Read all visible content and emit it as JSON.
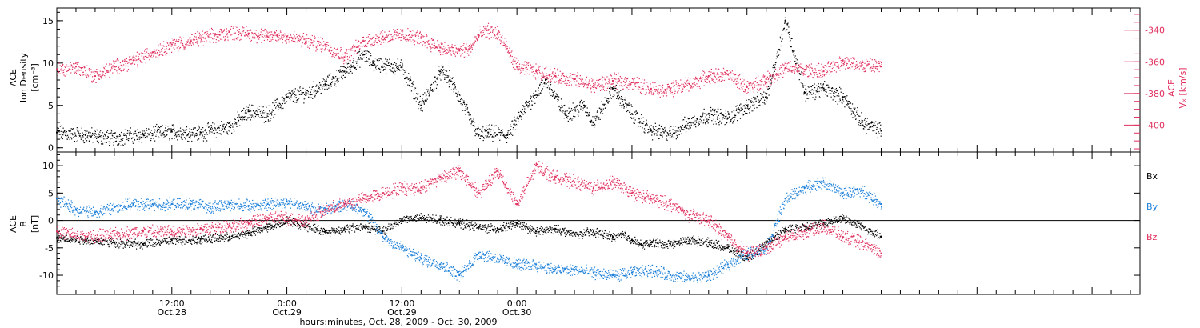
{
  "chart_data": [
    {
      "type": "scatter",
      "panel": "top",
      "ylabel_lines": [
        "ACE",
        "Ion Density",
        "[cm⁻³]"
      ],
      "y2label_lines": [
        "ACE",
        "Vₓ [km/s]"
      ],
      "yticks": [
        "0",
        "5",
        "10",
        "15"
      ],
      "y2ticks": [
        "-340",
        "-360",
        "-380",
        "-400"
      ],
      "ylim": [
        -0.5,
        16.5
      ],
      "y2lim": [
        -417,
        -326
      ],
      "x_hours_range": [
        0,
        88
      ],
      "series": [
        {
          "axis": "left",
          "color": "#000000",
          "x": [
            0,
            3,
            6,
            9,
            12,
            15,
            18,
            20,
            22,
            24,
            26,
            28,
            30,
            32,
            33,
            36,
            38,
            40,
            41,
            44,
            45,
            47,
            49,
            51,
            53,
            55,
            56,
            58,
            60,
            62,
            64,
            66,
            68,
            70,
            72,
            74,
            76,
            78,
            80,
            82,
            84,
            86
          ],
          "y": [
            1.8,
            1.5,
            1.2,
            1.6,
            1.9,
            1.8,
            2.5,
            4.3,
            4.0,
            6.0,
            6.5,
            7.5,
            9.0,
            11.0,
            10.0,
            9.5,
            5.0,
            9.0,
            8.0,
            1.5,
            1.8,
            1.5,
            5.0,
            8.0,
            4.0,
            5.0,
            3.0,
            7.0,
            4.0,
            2.0,
            1.7,
            3.0,
            4.0,
            3.5,
            5.0,
            6.0,
            15.0,
            6.5,
            7.0,
            6.0,
            3.0,
            2.0
          ]
        },
        {
          "axis": "right",
          "color": "#e0305f",
          "x": [
            0,
            2,
            4,
            6,
            8,
            10,
            12,
            14,
            15,
            17,
            18,
            20,
            22,
            23,
            24,
            26,
            28,
            30,
            32,
            34,
            36,
            38,
            40,
            41,
            42,
            43,
            44,
            45,
            46,
            48,
            50,
            52,
            54,
            56,
            58,
            60,
            62,
            64,
            66,
            68,
            70,
            72,
            74,
            76,
            78,
            80,
            82,
            84,
            86
          ],
          "y": [
            -365,
            -363,
            -369,
            -363,
            -359,
            -354,
            -349,
            -347,
            -345,
            -343,
            -341,
            -342,
            -344,
            -343,
            -344,
            -347,
            -349,
            -357,
            -347,
            -344,
            -343,
            -345,
            -351,
            -353,
            -353,
            -352,
            -343,
            -340,
            -342,
            -363,
            -366,
            -369,
            -371,
            -375,
            -372,
            -373,
            -377,
            -377,
            -374,
            -369,
            -368,
            -376,
            -371,
            -364,
            -365,
            -366,
            -359,
            -362,
            -363
          ]
        }
      ]
    },
    {
      "type": "scatter",
      "panel": "bottom",
      "ylabel_lines": [
        "ACE",
        "B",
        "[nT]"
      ],
      "yticks": [
        "10",
        "5",
        "0",
        "-5",
        "-10"
      ],
      "ylim": [
        -13.5,
        12.5
      ],
      "x_hours_range": [
        0,
        88
      ],
      "xlabel": "hours:minutes, Oct. 28, 2009 - Oct. 30, 2009",
      "xticks": [
        {
          "time": "12:00",
          "date": "Oct.28",
          "hour": 12
        },
        {
          "time": "0:00",
          "date": "Oct.29",
          "hour": 24
        },
        {
          "time": "12:00",
          "date": "Oct.29",
          "hour": 36
        },
        {
          "time": "0:00",
          "date": "Oct.30",
          "hour": 48
        }
      ],
      "legend": [
        "Bx",
        "By",
        "Bz"
      ],
      "series": [
        {
          "name": "Bx",
          "color": "#000000",
          "x": [
            0,
            3,
            6,
            9,
            12,
            15,
            18,
            20,
            22,
            24,
            26,
            28,
            30,
            32,
            34,
            36,
            38,
            40,
            42,
            44,
            46,
            48,
            50,
            52,
            54,
            56,
            58,
            59,
            60,
            61,
            62,
            64,
            66,
            68,
            70,
            72,
            74,
            76,
            78,
            80,
            82,
            84,
            86
          ],
          "y": [
            -3.2,
            -3.5,
            -4.0,
            -4.3,
            -3.6,
            -3.4,
            -3.0,
            -2.2,
            -1.2,
            0.0,
            -1.0,
            -2.0,
            -1.5,
            -1.0,
            -2.0,
            0.3,
            0.5,
            0.2,
            -0.5,
            -1.2,
            -1.5,
            -0.5,
            -2.0,
            -1.5,
            -2.5,
            -2.0,
            -3.0,
            -2.5,
            -3.5,
            -4.5,
            -4.0,
            -4.3,
            -3.5,
            -4.0,
            -5.0,
            -7.0,
            -4.0,
            -1.5,
            -1.0,
            -0.5,
            0.5,
            -1.0,
            -3.0
          ]
        },
        {
          "name": "By",
          "color": "#1a7fd8",
          "x": [
            0,
            2,
            4,
            6,
            8,
            10,
            12,
            14,
            16,
            18,
            20,
            22,
            24,
            26,
            28,
            30,
            32,
            34,
            36,
            38,
            40,
            42,
            44,
            46,
            48,
            50,
            52,
            54,
            56,
            58,
            60,
            62,
            64,
            66,
            68,
            70,
            72,
            74,
            76,
            78,
            80,
            82,
            84,
            86
          ],
          "y": [
            4.0,
            2.0,
            1.5,
            2.5,
            3.0,
            3.0,
            3.0,
            3.0,
            2.5,
            3.0,
            2.7,
            3.0,
            3.5,
            2.5,
            2.0,
            3.0,
            2.0,
            -3.0,
            -5.0,
            -7.0,
            -8.0,
            -10.0,
            -6.0,
            -7.0,
            -8.0,
            -8.0,
            -9.0,
            -9.0,
            -9.5,
            -10.0,
            -9.5,
            -9.0,
            -10.0,
            -10.5,
            -10.0,
            -8.0,
            -6.0,
            -5.0,
            4.0,
            6.0,
            7.0,
            5.0,
            5.5,
            3.0
          ]
        },
        {
          "name": "Bz",
          "color": "#e0305f",
          "x": [
            0,
            3,
            6,
            9,
            12,
            15,
            18,
            20,
            22,
            24,
            26,
            28,
            30,
            32,
            34,
            36,
            38,
            40,
            42,
            44,
            46,
            48,
            50,
            52,
            54,
            56,
            58,
            60,
            62,
            64,
            66,
            68,
            70,
            72,
            74,
            76,
            78,
            80,
            82,
            84,
            86
          ],
          "y": [
            -2.0,
            -3.0,
            -2.5,
            -2.0,
            -2.0,
            -1.5,
            -1.0,
            -0.5,
            0.5,
            0.5,
            0.0,
            2.0,
            3.0,
            4.0,
            5.0,
            6.0,
            6.0,
            8.0,
            9.0,
            5.0,
            9.0,
            3.0,
            10.0,
            8.0,
            7.0,
            6.0,
            7.0,
            5.0,
            4.0,
            3.0,
            1.0,
            0.0,
            -3.0,
            -6.0,
            -5.0,
            -3.0,
            -2.0,
            -1.0,
            -3.0,
            -4.0,
            -6.0
          ]
        }
      ]
    }
  ]
}
